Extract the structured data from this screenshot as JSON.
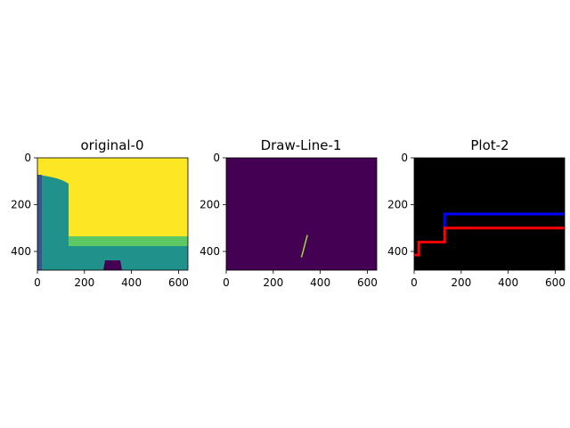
{
  "colors": {
    "viridis_yellow": "#fde725",
    "viridis_green": "#5ec962",
    "viridis_teal": "#21918c",
    "viridis_blue": "#3b528b",
    "viridis_purple": "#440154",
    "line_green": "#a0da39",
    "plot_blue": "#0000ff",
    "plot_red": "#ff0000",
    "background_black": "#000000"
  },
  "chart_data": [
    {
      "type": "heatmap",
      "title": "original-0",
      "xlim": [
        0,
        640
      ],
      "ylim": [
        480,
        0
      ],
      "x_ticks": [
        0,
        200,
        400,
        600
      ],
      "y_ticks": [
        0,
        200,
        400
      ],
      "regions": [
        {
          "label": "yellow",
          "color": "#fde725"
        },
        {
          "label": "green",
          "color": "#5ec962"
        },
        {
          "label": "teal",
          "color": "#21918c"
        },
        {
          "label": "blue",
          "color": "#3b528b"
        },
        {
          "label": "purple",
          "color": "#440154"
        }
      ]
    },
    {
      "type": "heatmap",
      "title": "Draw-Line-1",
      "xlim": [
        0,
        640
      ],
      "ylim": [
        480,
        0
      ],
      "x_ticks": [
        0,
        200,
        400,
        600
      ],
      "y_ticks": [
        0,
        200,
        400
      ],
      "segment": {
        "x": [
          320,
          345
        ],
        "y": [
          425,
          330
        ],
        "color": "#a0da39"
      }
    },
    {
      "type": "line",
      "title": "Plot-2",
      "xlim": [
        0,
        640
      ],
      "ylim": [
        480,
        0
      ],
      "x_ticks": [
        0,
        200,
        400,
        600
      ],
      "y_ticks": [
        0,
        200,
        400
      ],
      "series": [
        {
          "color": "#0000ff",
          "x": [
            130,
            130,
            640
          ],
          "y": [
            300,
            240,
            240
          ]
        },
        {
          "color": "#ff0000",
          "x": [
            0,
            20,
            20,
            130,
            130,
            640
          ],
          "y": [
            415,
            415,
            360,
            360,
            300,
            300
          ]
        }
      ]
    }
  ]
}
